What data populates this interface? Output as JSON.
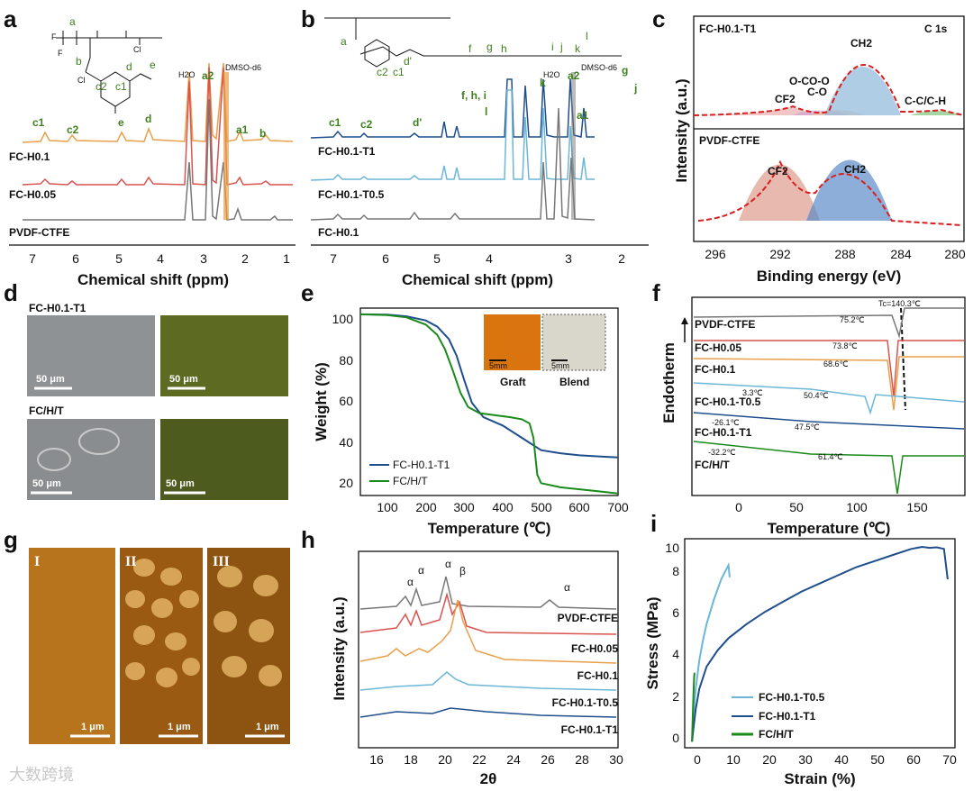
{
  "panels": {
    "a": {
      "label": "a",
      "xlabel": "Chemical shift (ppm)",
      "ticks": [
        "7",
        "6",
        "5",
        "4",
        "3",
        "2",
        "1"
      ],
      "traces": [
        "FC-H0.1",
        "FC-H0.05",
        "PVDF-CTFE"
      ],
      "peaks": [
        "c1",
        "c2",
        "e",
        "d",
        "H2O",
        "a2",
        "DMSO-d6",
        "a1",
        "b"
      ],
      "struct_labels": [
        "a",
        "b",
        "c2",
        "c1",
        "d",
        "e"
      ]
    },
    "b": {
      "label": "b",
      "xlabel": "Chemical shift (ppm)",
      "ticks": [
        "7",
        "6",
        "5",
        "4",
        "3",
        "2"
      ],
      "traces": [
        "FC-H0.1-T1",
        "FC-H0.1-T0.5",
        "FC-H0.1"
      ],
      "peaks": [
        "c1",
        "c2",
        "d'",
        "f, h, i",
        "l",
        "k",
        "H2O",
        "a2",
        "DMSO-d6",
        "g",
        "j",
        "a1"
      ]
    },
    "c": {
      "label": "c",
      "title": "C 1s",
      "sample_top": "FC-H0.1-T1",
      "sample_bottom": "PVDF-CTFE",
      "xlabel": "Binding energy (eV)",
      "ylabel": "Intensity (a.u.)",
      "ticks": [
        "296",
        "292",
        "288",
        "284",
        "280"
      ],
      "top_peaks": [
        "CF2",
        "O-CO-O",
        "C-O",
        "CH2",
        "C-C/C-H"
      ],
      "bottom_peaks": [
        "CF2",
        "CH2"
      ]
    },
    "d": {
      "label": "d",
      "row1": "FC-H0.1-T1",
      "row2": "FC/H/T",
      "scale": "50 μm"
    },
    "e": {
      "label": "e",
      "xlabel": "Temperature (℃)",
      "ylabel": "Weight (%)",
      "inset_scale": "5mm",
      "inset_labels": [
        "Graft",
        "Blend"
      ]
    },
    "f": {
      "label": "f",
      "xlabel": "Temperature (℃)",
      "ylabel": "Endotherm",
      "tc_label": "Tc=140.3℃",
      "traces": [
        "PVDF-CTFE",
        "FC-H0.05",
        "FC-H0.1",
        "FC-H0.1-T0.5",
        "FC-H0.1-T1",
        "FC/H/T"
      ],
      "annotations": [
        "75.2℃",
        "73.8℃",
        "68.6℃",
        "3.3℃",
        "50.4℃",
        "-26.1℃",
        "47.5℃",
        "-32.2℃",
        "61.4℃"
      ],
      "ticks": [
        "0",
        "50",
        "100",
        "150"
      ]
    },
    "g": {
      "label": "g",
      "numerals": [
        "I",
        "II",
        "III"
      ],
      "scale": "1 μm"
    },
    "h": {
      "label": "h",
      "xlabel": "2θ",
      "ylabel": "Intensity (a.u.)",
      "traces": [
        "PVDF-CTFE",
        "FC-H0.05",
        "FC-H0.1",
        "FC-H0.1-T0.5",
        "FC-H0.1-T1"
      ],
      "phase_labels": [
        "α",
        "α",
        "α",
        "β",
        "α"
      ],
      "ticks": [
        "16",
        "18",
        "20",
        "22",
        "24",
        "26",
        "28",
        "30"
      ]
    },
    "i": {
      "label": "i",
      "xlabel": "Strain (%)",
      "ylabel": "Stress (MPa)",
      "ticks_x": [
        "0",
        "10",
        "20",
        "30",
        "40",
        "50",
        "60",
        "70"
      ],
      "ticks_y": [
        "0",
        "2",
        "4",
        "6",
        "8",
        "10"
      ]
    }
  },
  "watermark": "大数跨境",
  "chart_data": [
    {
      "type": "line",
      "title": "",
      "xlabel": "Temperature (℃)",
      "ylabel": "Weight (%)",
      "xlim": [
        30,
        700
      ],
      "ylim": [
        12,
        103
      ],
      "series": [
        {
          "name": "FC-H0.1-T1",
          "color": "#1f4e8c",
          "x": [
            30,
            100,
            150,
            200,
            230,
            260,
            280,
            300,
            320,
            350,
            400,
            450,
            500,
            550,
            600,
            650,
            700
          ],
          "y": [
            100,
            99.8,
            99,
            97,
            94,
            88,
            80,
            68,
            57,
            50,
            46,
            40,
            34,
            32.5,
            31.5,
            31,
            30.5
          ]
        },
        {
          "name": "FC/H/T",
          "color": "#1a8a1a",
          "x": [
            30,
            100,
            150,
            200,
            230,
            250,
            270,
            290,
            310,
            340,
            380,
            420,
            450,
            470,
            480,
            490,
            500,
            550,
            600,
            650,
            700
          ],
          "y": [
            100,
            99.6,
            98.5,
            95,
            90,
            83,
            73,
            62,
            55,
            52,
            51,
            50,
            49,
            47,
            40,
            22,
            18,
            16,
            15,
            14,
            13
          ]
        }
      ]
    },
    {
      "type": "line",
      "title": "",
      "xlabel": "Strain (%)",
      "ylabel": "Stress (MPa)",
      "xlim": [
        -2,
        72
      ],
      "ylim": [
        -0.3,
        10
      ],
      "series": [
        {
          "name": "FC-H0.1-T0.5",
          "color": "#6cb6d8",
          "x": [
            0,
            0.5,
            1,
            2,
            3,
            4,
            6,
            8,
            10,
            10.3
          ],
          "y": [
            0,
            1.5,
            2.6,
            4.0,
            5.0,
            5.8,
            7.0,
            8.0,
            8.7,
            8.1
          ]
        },
        {
          "name": "FC-H0.1-T1",
          "color": "#1f4e8c",
          "x": [
            0,
            0.5,
            1,
            2,
            4,
            7,
            10,
            15,
            20,
            25,
            30,
            35,
            40,
            45,
            50,
            55,
            60,
            63,
            65,
            67,
            69,
            70
          ],
          "y": [
            0,
            0.8,
            1.6,
            2.6,
            3.7,
            4.5,
            5.1,
            5.8,
            6.4,
            6.9,
            7.4,
            7.8,
            8.2,
            8.6,
            8.9,
            9.2,
            9.5,
            9.6,
            9.55,
            9.58,
            9.5,
            8.0
          ]
        },
        {
          "name": "FC/H/T",
          "color": "#1a8a1a",
          "x": [
            0,
            0.2,
            0.4,
            0.6,
            0.7
          ],
          "y": [
            0,
            1.2,
            2.3,
            3.2,
            3.4
          ]
        }
      ]
    }
  ]
}
